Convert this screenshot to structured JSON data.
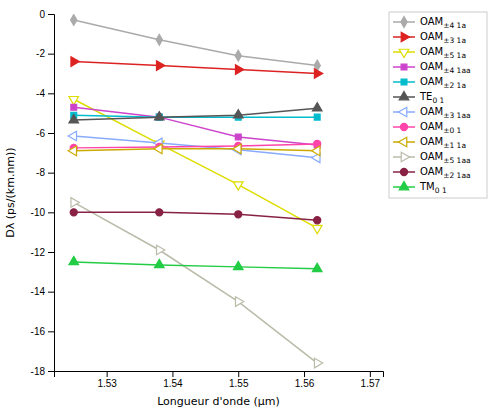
{
  "chart_data": {
    "type": "line",
    "xlabel": "Longueur d'onde (μm)",
    "ylabel": "Dλ (ps/(km.nm))",
    "x": [
      1.525,
      1.538,
      1.55,
      1.562
    ],
    "xlim": [
      1.522,
      1.572
    ],
    "xticks": [
      1.53,
      1.54,
      1.55,
      1.56,
      1.57
    ],
    "ylim": [
      -18,
      0
    ],
    "yticks": [
      0,
      -2,
      -4,
      -6,
      -8,
      -10,
      -12,
      -14,
      -16,
      -18
    ],
    "grid": false,
    "legend": "right",
    "series": [
      {
        "name": "OAM±4 1a",
        "color": "#aaaaaa",
        "marker": "diamond",
        "values": [
          -0.3,
          -1.3,
          -2.1,
          -2.6
        ]
      },
      {
        "name": "OAM±3 1a",
        "color": "#dd2222",
        "marker": "triangle-right",
        "values": [
          -2.4,
          -2.6,
          -2.8,
          -3.0
        ]
      },
      {
        "name": "OAM±5 1a",
        "color": "#dddd00",
        "marker": "triangle-down-open",
        "values": [
          -4.3,
          -6.55,
          -8.6,
          -10.8
        ]
      },
      {
        "name": "OAM±4 1aa",
        "color": "#cc44cc",
        "marker": "square",
        "values": [
          -4.7,
          -5.2,
          -6.2,
          -6.6
        ]
      },
      {
        "name": "OAM±2 1a",
        "color": "#00bbcc",
        "marker": "square",
        "values": [
          -5.1,
          -5.2,
          -5.2,
          -5.2
        ]
      },
      {
        "name": "TE0 1",
        "color": "#555555",
        "marker": "triangle-up",
        "values": [
          -5.35,
          -5.2,
          -5.1,
          -4.75
        ]
      },
      {
        "name": "OAM±3 1aa",
        "color": "#88aaff",
        "marker": "triangle-left-open",
        "values": [
          -6.15,
          -6.5,
          -6.85,
          -7.25
        ]
      },
      {
        "name": "OAM±0 1",
        "color": "#ff44aa",
        "marker": "circle",
        "values": [
          -6.75,
          -6.7,
          -6.65,
          -6.55
        ]
      },
      {
        "name": "OAM±1 1a",
        "color": "#ccaa00",
        "marker": "triangle-left-open",
        "values": [
          -6.9,
          -6.8,
          -6.8,
          -6.9
        ]
      },
      {
        "name": "OAM±5 1aa",
        "color": "#bbbbaa",
        "marker": "triangle-right-open",
        "values": [
          -9.5,
          -11.9,
          -14.5,
          -17.6
        ]
      },
      {
        "name": "OAM±2 1aa",
        "color": "#882244",
        "marker": "circle",
        "values": [
          -10.0,
          -10.0,
          -10.1,
          -10.4
        ]
      },
      {
        "name": "TM0 1",
        "color": "#22cc44",
        "marker": "triangle-up",
        "values": [
          -12.5,
          -12.65,
          -12.75,
          -12.85
        ]
      }
    ]
  }
}
